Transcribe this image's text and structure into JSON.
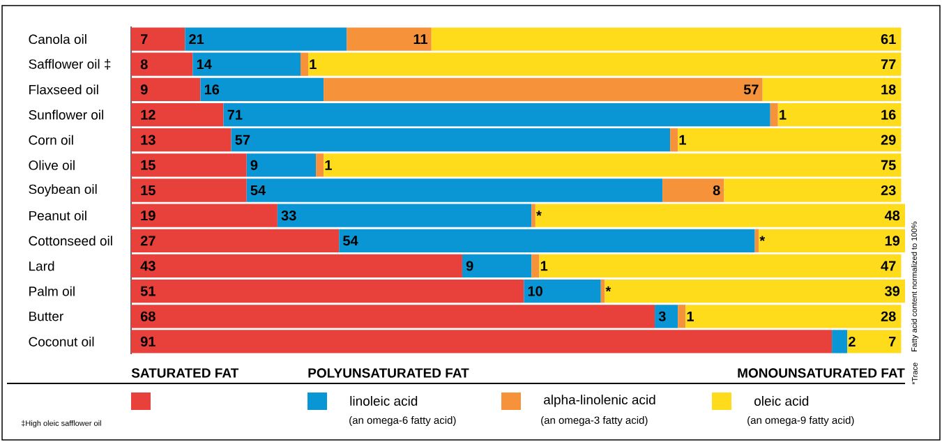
{
  "chart_data": {
    "type": "bar",
    "orientation": "horizontal",
    "stacked": true,
    "legend": "bottom",
    "xlim": [
      0,
      100.5
    ],
    "categories": [
      "Canola oil",
      "Safflower oil ‡",
      "Flaxseed oil",
      "Sunflower oil",
      "Corn oil",
      "Olive oil",
      "Soybean oil",
      "Peanut oil",
      "Cottonseed oil",
      "Lard",
      "Palm oil",
      "Butter",
      "Coconut oil"
    ],
    "series": [
      {
        "name": "SATURATED FAT",
        "color": "#e8403a",
        "values": [
          7,
          8,
          9,
          12,
          13,
          15,
          15,
          19,
          27,
          43,
          51,
          68,
          91
        ],
        "value_labels": [
          "7",
          "8",
          "9",
          "12",
          "13",
          "15",
          "15",
          "19",
          "27",
          "43",
          "51",
          "68",
          "91"
        ]
      },
      {
        "name": "linoleic acid",
        "color": "#0a96d4",
        "values": [
          21,
          14,
          16,
          71,
          57,
          9,
          54,
          33,
          54,
          9,
          10,
          3,
          2
        ],
        "value_labels": [
          "21",
          "14",
          "16",
          "71",
          "57",
          "9",
          "54",
          "33",
          "54",
          "9",
          "10",
          "3",
          "2"
        ]
      },
      {
        "name": "alpha-linolenic acid",
        "color": "#f5923a",
        "values": [
          11,
          1,
          57,
          1,
          1,
          1,
          8,
          0.5,
          0.5,
          1,
          0.5,
          1,
          null
        ],
        "value_labels": [
          "11",
          "1",
          "57",
          "1",
          "1",
          "1",
          "8",
          "*",
          "*",
          "1",
          "*",
          "1",
          null
        ]
      },
      {
        "name": "oleic acid",
        "color": "#fedc1c",
        "values": [
          61,
          77,
          18,
          16,
          29,
          75,
          23,
          48,
          19,
          47,
          39,
          28,
          7
        ],
        "value_labels": [
          "61",
          "77",
          "18",
          "16",
          "29",
          "75",
          "23",
          "48",
          "19",
          "47",
          "39",
          "28",
          "7"
        ]
      }
    ],
    "annotations": [
      "POLYUNSATURATED FAT",
      "MONOUNSATURATED FAT",
      "(an omega-6 fatty acid)",
      "(an omega-3 fatty acid)",
      "(an omega-9 fatty acid)",
      "‡High oleic safflower oil",
      "*Trace",
      "Fatty acid content normalized to 100%"
    ]
  }
}
